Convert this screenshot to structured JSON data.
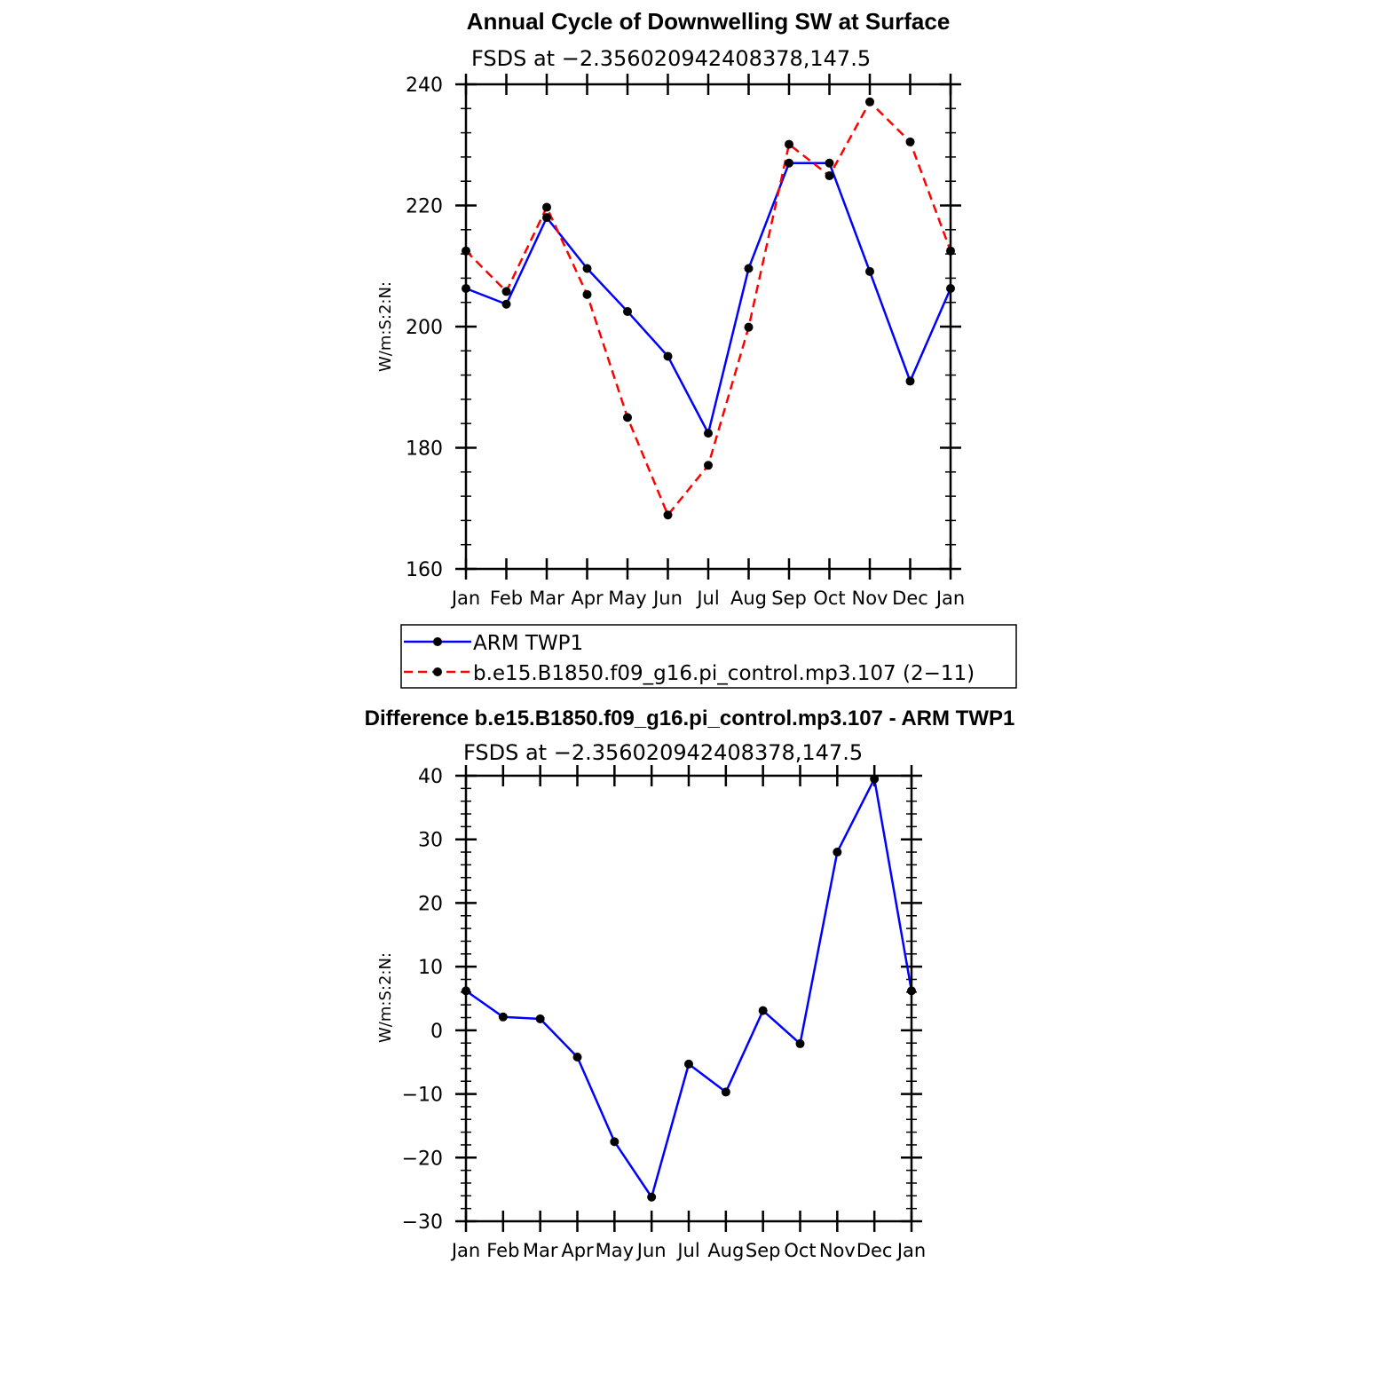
{
  "chart_data": [
    {
      "type": "line",
      "title": "Annual Cycle of Downwelling SW at Surface",
      "subtitle": "FSDS at −2.356020942408378,147.5",
      "ylabel": "W/m:S:2:N:",
      "ylim": [
        160,
        240
      ],
      "yticks": [
        "160",
        "180",
        "200",
        "220",
        "240"
      ],
      "categories": [
        "Jan",
        "Feb",
        "Mar",
        "Apr",
        "May",
        "Jun",
        "Jul",
        "Aug",
        "Sep",
        "Oct",
        "Nov",
        "Dec",
        "Jan"
      ],
      "series": [
        {
          "name": "ARM  TWP1",
          "color": "#0000ff",
          "dash": "solid",
          "values": [
            206.3,
            203.7,
            218.0,
            209.6,
            202.5,
            195.1,
            182.4,
            209.6,
            227.0,
            227.0,
            209.1,
            191.0,
            206.3
          ]
        },
        {
          "name": "b.e15.B1850.f09_g16.pi_control.mp3.107 (2−11)",
          "color": "#ff0000",
          "dash": "dashed",
          "values": [
            212.5,
            205.8,
            219.7,
            205.3,
            185.0,
            168.9,
            177.1,
            199.9,
            230.1,
            224.9,
            237.1,
            230.5,
            212.5
          ]
        }
      ],
      "legend": "below"
    },
    {
      "type": "line",
      "title": "Difference b.e15.B1850.f09_g16.pi_control.mp3.107 - ARM TWP1",
      "subtitle": "FSDS at −2.356020942408378,147.5",
      "ylabel": "W/m:S:2:N:",
      "ylim": [
        -30,
        40
      ],
      "yticks": [
        "−30",
        "−20",
        "−10",
        "0",
        "10",
        "20",
        "30",
        "40"
      ],
      "categories": [
        "Jan",
        "Feb",
        "Mar",
        "Apr",
        "May",
        "Jun",
        "Jul",
        "Aug",
        "Sep",
        "Oct",
        "Nov",
        "Dec",
        "Jan"
      ],
      "series": [
        {
          "color": "#0000ff",
          "dash": "solid",
          "values": [
            6.2,
            2.1,
            1.8,
            -4.2,
            -17.5,
            -26.2,
            -5.3,
            -9.7,
            3.1,
            -2.1,
            28.0,
            39.5,
            6.2
          ]
        }
      ]
    }
  ]
}
